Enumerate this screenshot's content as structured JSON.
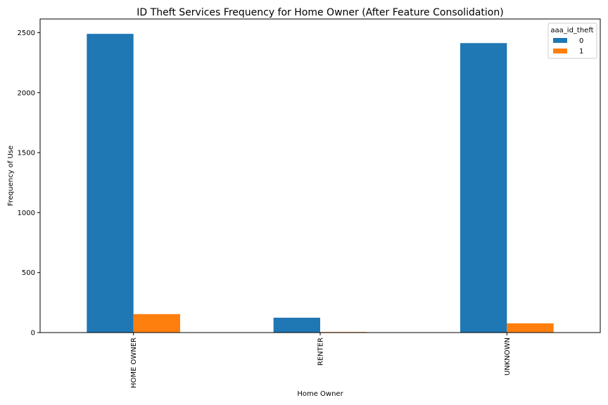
{
  "chart_data": {
    "type": "bar",
    "title": "ID Theft Services Frequency for Home Owner (After Feature Consolidation)",
    "xlabel": "Home Owner",
    "ylabel": "Frequency of Use",
    "categories": [
      "HOME OWNER",
      "RENTER",
      "UNKNOWN"
    ],
    "series": [
      {
        "name": "0",
        "values": [
          2490,
          124,
          2413
        ],
        "color": "#1f77b4"
      },
      {
        "name": "1",
        "values": [
          154,
          5,
          77
        ],
        "color": "#ff7f0e"
      }
    ],
    "ylim": [
      0,
      2614
    ],
    "yticks": [
      0,
      500,
      1000,
      1500,
      2000,
      2500
    ],
    "legend": {
      "title": "aaa_id_theft",
      "position": "top-right"
    },
    "grid": false
  }
}
